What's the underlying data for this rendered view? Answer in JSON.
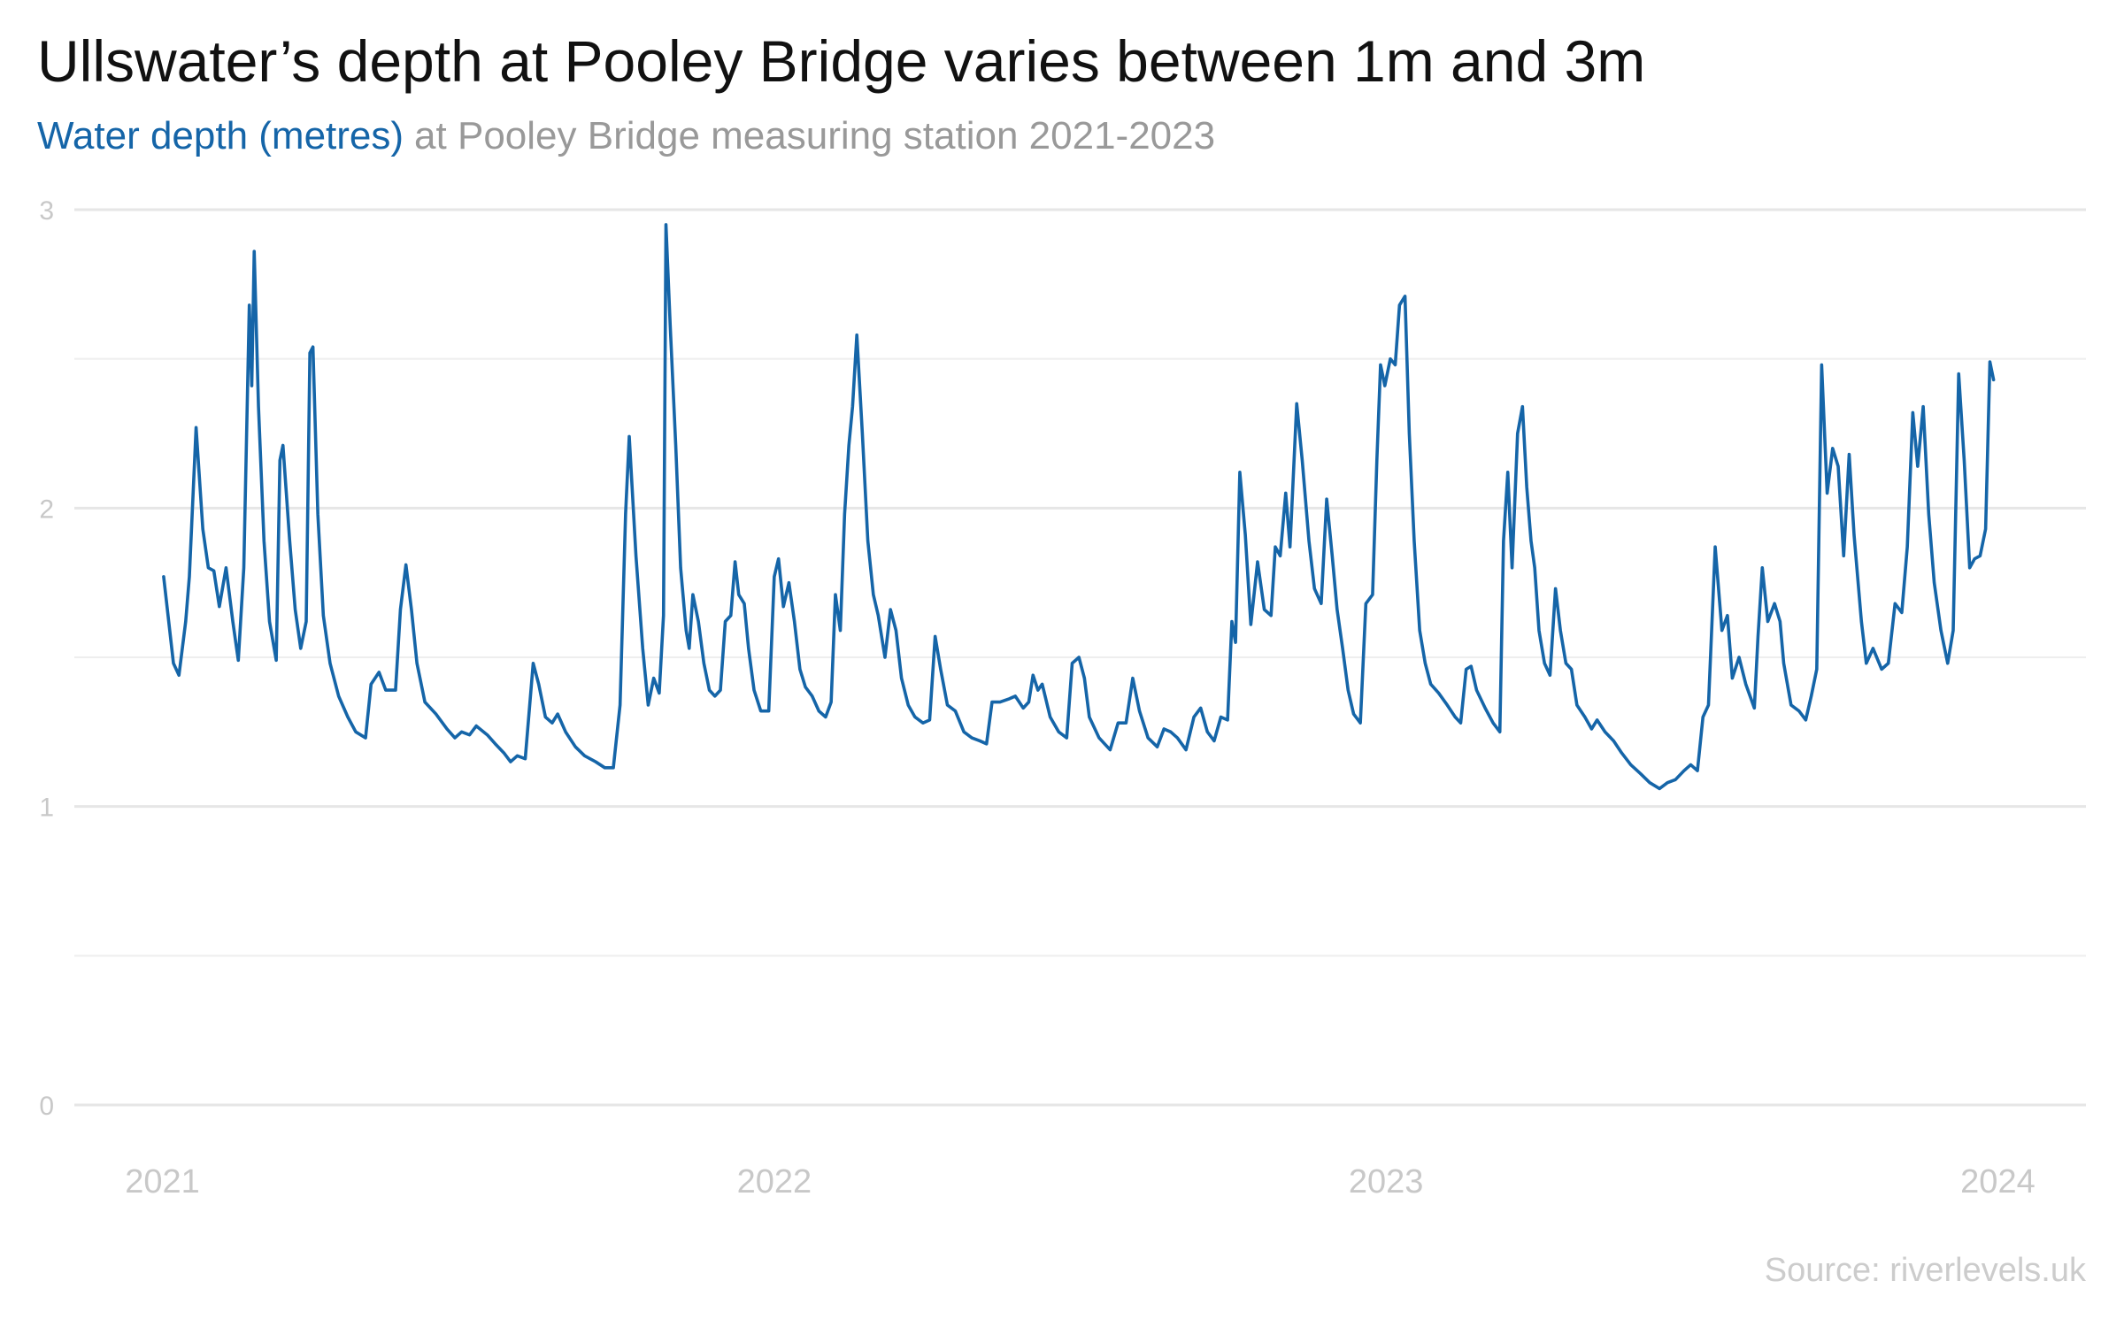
{
  "chart_data": {
    "type": "line",
    "title": "Ullswater’s depth at Pooley Bridge varies between 1m and 3m",
    "subtitle_highlight": "Water depth (metres)",
    "subtitle": "at Pooley Bridge measuring station 2021-2023",
    "source": "Source: riverlevels.uk",
    "xlim": [
      2020.856,
      2024.144
    ],
    "xticks": [
      2021,
      2022,
      2023,
      2024
    ],
    "ylim": [
      0,
      3
    ],
    "yticks": [
      0,
      1,
      2,
      3
    ],
    "minor_yticks": [
      0.5,
      1.5,
      2.5
    ],
    "grid": true,
    "series": [
      {
        "name": "Water depth (metres)",
        "color": "#1565a8",
        "x": [
          2021.002,
          2021.018,
          2021.027,
          2021.038,
          2021.044,
          2021.055,
          2021.066,
          2021.075,
          2021.084,
          2021.093,
          2021.104,
          2021.115,
          2021.124,
          2021.133,
          2021.142,
          2021.146,
          2021.15,
          2021.157,
          2021.166,
          2021.175,
          2021.186,
          2021.192,
          2021.197,
          2021.208,
          2021.217,
          2021.226,
          2021.235,
          2021.241,
          2021.246,
          2021.254,
          2021.263,
          2021.274,
          2021.288,
          2021.303,
          2021.316,
          2021.332,
          2021.341,
          2021.354,
          2021.365,
          2021.381,
          2021.389,
          2021.398,
          2021.407,
          2021.416,
          2021.429,
          2021.447,
          2021.465,
          2021.478,
          2021.489,
          2021.502,
          2021.513,
          2021.531,
          2021.544,
          2021.558,
          2021.569,
          2021.58,
          2021.593,
          2021.606,
          2021.615,
          2021.626,
          2021.637,
          2021.646,
          2021.659,
          2021.675,
          2021.69,
          2021.708,
          2021.723,
          2021.737,
          2021.748,
          2021.757,
          2021.763,
          2021.774,
          2021.785,
          2021.794,
          2021.803,
          2021.812,
          2021.819,
          2021.823,
          2021.83,
          2021.839,
          2021.847,
          2021.856,
          2021.861,
          2021.867,
          2021.876,
          2021.885,
          2021.894,
          2021.903,
          2021.912,
          2021.92,
          2021.929,
          2021.936,
          2021.942,
          2021.951,
          2021.958,
          2021.967,
          2021.978,
          2021.991,
          2022.0,
          2022.007,
          2022.015,
          2022.024,
          2022.033,
          2022.042,
          2022.051,
          2022.062,
          2022.073,
          2022.084,
          2022.093,
          2022.1,
          2022.108,
          2022.115,
          2022.122,
          2022.128,
          2022.135,
          2022.144,
          2022.153,
          2022.162,
          2022.17,
          2022.181,
          2022.19,
          2022.199,
          2022.208,
          2022.219,
          2022.23,
          2022.243,
          2022.254,
          2022.263,
          2022.272,
          2022.283,
          2022.296,
          2022.31,
          2022.323,
          2022.336,
          2022.347,
          2022.356,
          2022.369,
          2022.383,
          2022.394,
          2022.407,
          2022.416,
          2022.423,
          2022.431,
          2022.438,
          2022.451,
          2022.465,
          2022.478,
          2022.487,
          2022.498,
          2022.507,
          2022.515,
          2022.531,
          2022.549,
          2022.562,
          2022.575,
          2022.586,
          2022.597,
          2022.611,
          2022.626,
          2022.637,
          2022.648,
          2022.659,
          2022.673,
          2022.686,
          2022.697,
          2022.708,
          2022.719,
          2022.73,
          2022.741,
          2022.748,
          2022.754,
          2022.761,
          2022.77,
          2022.779,
          2022.79,
          2022.801,
          2022.812,
          2022.819,
          2022.827,
          2022.836,
          2022.843,
          2022.854,
          2022.863,
          2022.874,
          2022.883,
          2022.894,
          2022.903,
          2022.912,
          2022.92,
          2022.929,
          2022.938,
          2022.947,
          2022.958,
          2022.967,
          2022.978,
          2022.985,
          2022.991,
          2022.998,
          2023.007,
          2023.015,
          2023.022,
          2023.031,
          2023.038,
          2023.046,
          2023.055,
          2023.064,
          2023.073,
          2023.086,
          2023.1,
          2023.113,
          2023.122,
          2023.131,
          2023.139,
          2023.148,
          2023.162,
          2023.175,
          2023.186,
          2023.192,
          2023.199,
          2023.206,
          2023.215,
          2023.223,
          2023.23,
          2023.237,
          2023.243,
          2023.25,
          2023.259,
          2023.268,
          2023.277,
          2023.285,
          2023.294,
          2023.303,
          2023.312,
          2023.325,
          2023.336,
          2023.345,
          2023.358,
          2023.372,
          2023.385,
          2023.4,
          2023.416,
          2023.431,
          2023.447,
          2023.46,
          2023.473,
          2023.487,
          2023.498,
          2023.509,
          2023.518,
          2023.527,
          2023.538,
          2023.549,
          2023.558,
          2023.566,
          2023.577,
          2023.588,
          2023.602,
          2023.608,
          2023.615,
          2023.624,
          2023.635,
          2023.644,
          2023.65,
          2023.662,
          2023.675,
          2023.686,
          2023.695,
          2023.704,
          2023.712,
          2023.721,
          2023.73,
          2023.739,
          2023.748,
          2023.757,
          2023.765,
          2023.777,
          2023.785,
          2023.796,
          2023.81,
          2023.821,
          2023.832,
          2023.843,
          2023.852,
          2023.861,
          2023.869,
          2023.878,
          2023.887,
          2023.896,
          2023.907,
          2023.918,
          2023.927,
          2023.936,
          2023.945,
          2023.954,
          2023.962,
          2023.971,
          2023.98,
          2023.987,
          2023.993
        ],
        "values": [
          1.77,
          1.48,
          1.44,
          1.62,
          1.77,
          2.27,
          1.93,
          1.8,
          1.79,
          1.67,
          1.8,
          1.62,
          1.49,
          1.8,
          2.68,
          2.41,
          2.86,
          2.34,
          1.89,
          1.62,
          1.49,
          2.16,
          2.21,
          1.89,
          1.66,
          1.53,
          1.62,
          2.52,
          2.54,
          1.98,
          1.64,
          1.48,
          1.37,
          1.3,
          1.25,
          1.23,
          1.41,
          1.45,
          1.39,
          1.39,
          1.66,
          1.81,
          1.66,
          1.48,
          1.35,
          1.31,
          1.26,
          1.23,
          1.25,
          1.24,
          1.27,
          1.24,
          1.21,
          1.18,
          1.15,
          1.17,
          1.16,
          1.48,
          1.41,
          1.3,
          1.28,
          1.31,
          1.25,
          1.2,
          1.17,
          1.15,
          1.13,
          1.13,
          1.34,
          1.98,
          2.24,
          1.84,
          1.53,
          1.34,
          1.43,
          1.38,
          1.64,
          2.95,
          2.61,
          2.21,
          1.8,
          1.59,
          1.53,
          1.71,
          1.62,
          1.48,
          1.39,
          1.37,
          1.39,
          1.62,
          1.64,
          1.82,
          1.71,
          1.68,
          1.53,
          1.39,
          1.32,
          1.32,
          1.77,
          1.83,
          1.67,
          1.75,
          1.62,
          1.46,
          1.4,
          1.37,
          1.32,
          1.3,
          1.35,
          1.71,
          1.59,
          1.98,
          2.21,
          2.34,
          2.58,
          2.25,
          1.89,
          1.71,
          1.64,
          1.5,
          1.66,
          1.59,
          1.43,
          1.34,
          1.3,
          1.28,
          1.29,
          1.57,
          1.46,
          1.34,
          1.32,
          1.25,
          1.23,
          1.22,
          1.21,
          1.35,
          1.35,
          1.36,
          1.37,
          1.33,
          1.35,
          1.44,
          1.39,
          1.41,
          1.3,
          1.25,
          1.23,
          1.48,
          1.5,
          1.43,
          1.3,
          1.23,
          1.19,
          1.28,
          1.28,
          1.43,
          1.32,
          1.23,
          1.2,
          1.26,
          1.25,
          1.23,
          1.19,
          1.3,
          1.33,
          1.25,
          1.22,
          1.3,
          1.29,
          1.62,
          1.55,
          2.12,
          1.91,
          1.61,
          1.82,
          1.66,
          1.64,
          1.87,
          1.84,
          2.05,
          1.87,
          2.35,
          2.16,
          1.89,
          1.73,
          1.68,
          2.03,
          1.84,
          1.66,
          1.53,
          1.39,
          1.31,
          1.28,
          1.68,
          1.71,
          2.16,
          2.48,
          2.41,
          2.5,
          2.48,
          2.68,
          2.71,
          2.25,
          1.89,
          1.59,
          1.48,
          1.41,
          1.38,
          1.34,
          1.3,
          1.28,
          1.46,
          1.47,
          1.39,
          1.33,
          1.28,
          1.25,
          1.89,
          2.12,
          1.8,
          2.25,
          2.34,
          2.07,
          1.89,
          1.8,
          1.59,
          1.48,
          1.44,
          1.73,
          1.59,
          1.48,
          1.46,
          1.34,
          1.3,
          1.26,
          1.29,
          1.25,
          1.22,
          1.18,
          1.14,
          1.11,
          1.08,
          1.06,
          1.08,
          1.09,
          1.12,
          1.14,
          1.12,
          1.3,
          1.34,
          1.87,
          1.59,
          1.64,
          1.43,
          1.5,
          1.41,
          1.33,
          1.57,
          1.8,
          1.62,
          1.68,
          1.62,
          1.48,
          1.34,
          1.32,
          1.29,
          1.37,
          1.46,
          2.48,
          2.05,
          2.2,
          2.14,
          1.84,
          2.18,
          1.91,
          1.62,
          1.48,
          1.53,
          1.46,
          1.48,
          1.68,
          1.65,
          1.87,
          2.32,
          2.14,
          2.34,
          1.98,
          1.75,
          1.59,
          1.48,
          1.59,
          2.45,
          2.16,
          1.8,
          1.83,
          1.84,
          1.93,
          2.49,
          2.43
        ]
      }
    ]
  }
}
